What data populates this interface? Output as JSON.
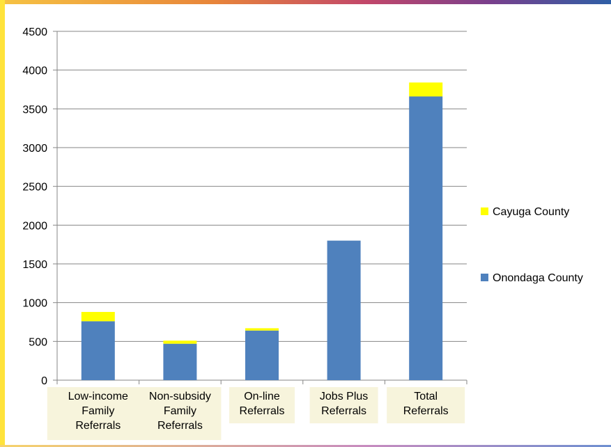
{
  "chart_data": {
    "type": "bar",
    "stacked": true,
    "title": "",
    "xlabel": "",
    "ylabel": "",
    "ylim": [
      0,
      4500
    ],
    "yticks": [
      0,
      500,
      1000,
      1500,
      2000,
      2500,
      3000,
      3500,
      4000,
      4500
    ],
    "grid": true,
    "legend_position": "right",
    "categories": [
      [
        "Low-income",
        "Family",
        "Referrals"
      ],
      [
        "Non-subsidy",
        "Family",
        "Referrals"
      ],
      [
        "On-line",
        "Referrals"
      ],
      [
        "Jobs Plus",
        "Referrals"
      ],
      [
        "Total",
        "Referrals"
      ]
    ],
    "series": [
      {
        "name": "Onondaga County",
        "color": "#4F81BD",
        "values": [
          760,
          470,
          640,
          1800,
          3660
        ]
      },
      {
        "name": "Cayuga County",
        "color": "#FFFF00",
        "values": [
          120,
          40,
          30,
          0,
          180
        ]
      }
    ],
    "legend_order": [
      "Cayuga County",
      "Onondaga County"
    ]
  },
  "decor": {
    "left_bar_color": "#FFE33B",
    "category_box_color": "#F7F4DC"
  }
}
